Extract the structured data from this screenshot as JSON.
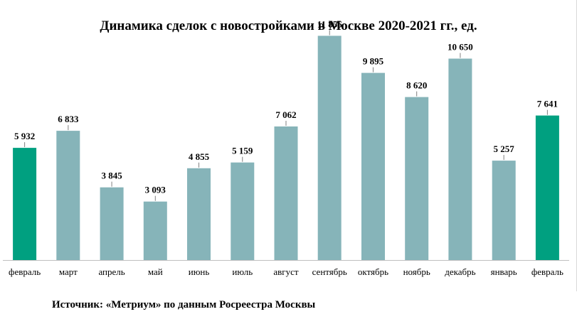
{
  "chart_data": {
    "type": "bar",
    "title": "Динамика сделок с новостройками в Москве 2020-2021 гг., ед.",
    "categories": [
      "февраль",
      "март",
      "апрель",
      "май",
      "июнь",
      "июль",
      "август",
      "сентябрь",
      "октябрь",
      "ноябрь",
      "декабрь",
      "январь",
      "февраль"
    ],
    "values": [
      5932,
      6833,
      3845,
      3093,
      4855,
      5159,
      7062,
      11856,
      9895,
      8620,
      10650,
      5257,
      7641
    ],
    "value_labels": [
      "5 932",
      "6 833",
      "3 845",
      "3 093",
      "4 855",
      "5 159",
      "7 062",
      "11 856",
      "9 895",
      "8 620",
      "10 650",
      "5 257",
      "7 641"
    ],
    "highlighted": [
      true,
      false,
      false,
      false,
      false,
      false,
      false,
      false,
      false,
      false,
      false,
      false,
      true
    ],
    "ylim": [
      0,
      13000
    ],
    "xlabel": "",
    "ylabel": "",
    "grid": false,
    "colors": {
      "bar": "#86b4b9",
      "highlight": "#00a080",
      "axis": "#bfbfbf",
      "label": "#000000"
    }
  },
  "source": "Источник: «Метриум» по данным Росреестра Москвы"
}
